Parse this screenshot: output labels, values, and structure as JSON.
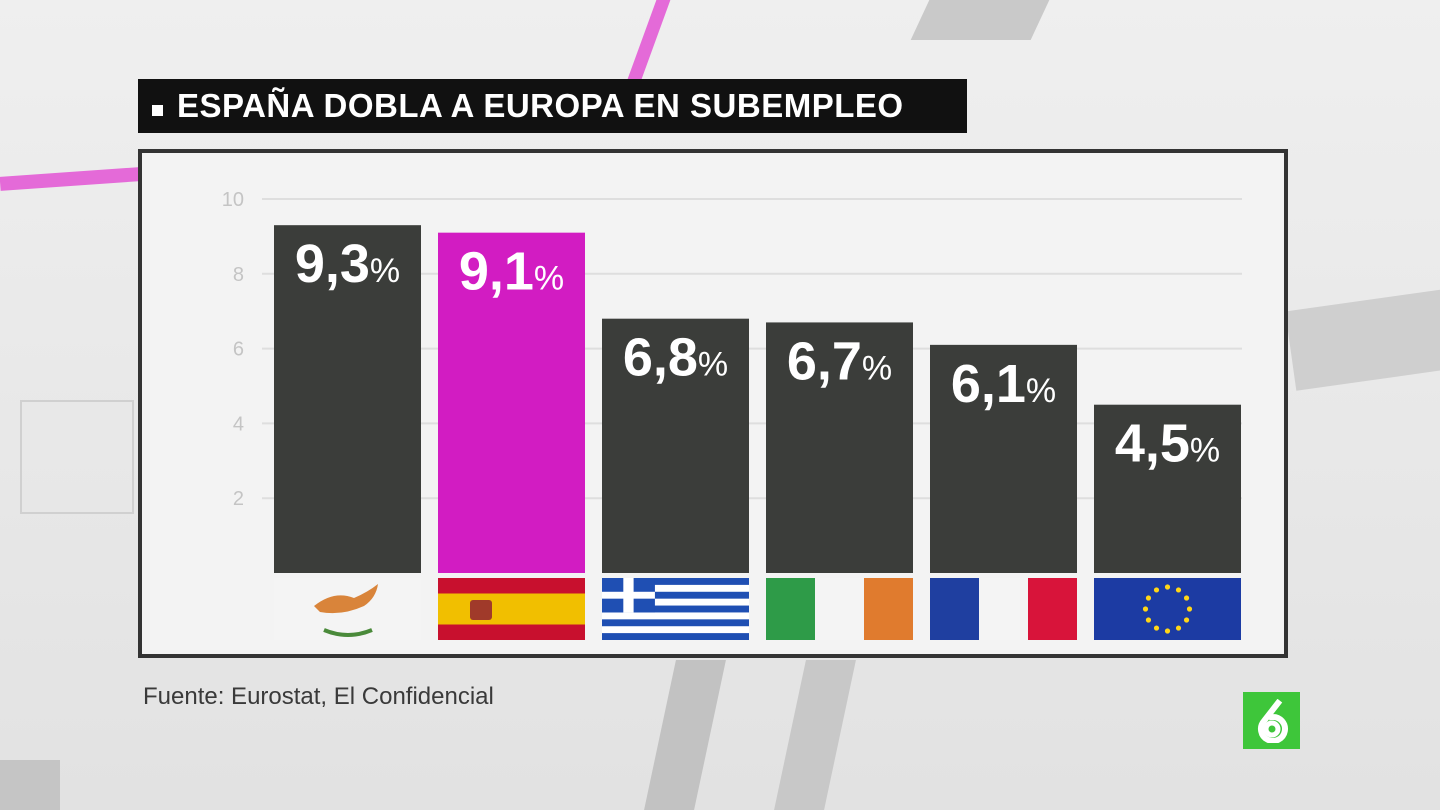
{
  "title": "ESPAÑA DOBLA A EUROPA EN SUBEMPLEO",
  "source": "Fuente: Eurostat, El Confidencial",
  "logo": "6",
  "colors": {
    "bar_default": "#3b3d3a",
    "bar_highlight": "#d21cc2",
    "grid": "#dedede",
    "tick_text": "#c4c4c4",
    "logo_green": "#3ec63a"
  },
  "chart_data": {
    "type": "bar",
    "categories": [
      "cyprus-flag",
      "spain-flag",
      "greece-flag",
      "ireland-flag",
      "france-flag",
      "eu-flag"
    ],
    "values": [
      9.3,
      9.1,
      6.8,
      6.7,
      6.1,
      4.5
    ],
    "value_labels": [
      "9,3",
      "9,1",
      "6,8",
      "6,7",
      "6,1",
      "4,5"
    ],
    "unit": "%",
    "highlight_index": 1,
    "ylim": [
      0,
      10
    ],
    "yticks": [
      "2",
      "4",
      "6",
      "8",
      "10"
    ],
    "grid": true
  }
}
